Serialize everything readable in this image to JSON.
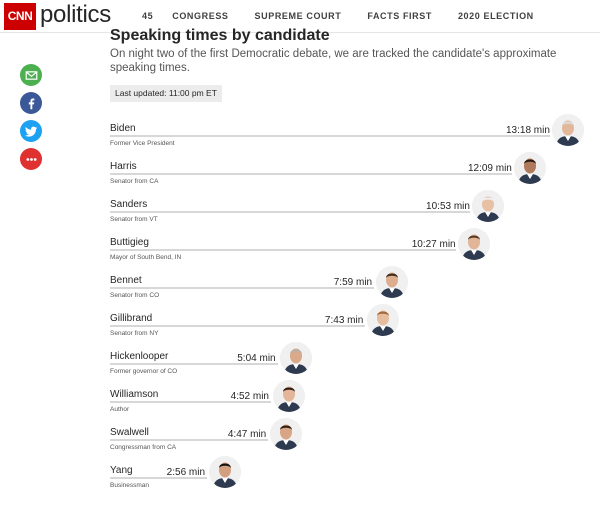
{
  "header": {
    "logo_text": "CNN",
    "section": "politics",
    "nav": [
      "45",
      "CONGRESS",
      "SUPREME COURT",
      "FACTS FIRST",
      "2020 ELECTION"
    ]
  },
  "share_icons": [
    "email-icon",
    "facebook-icon",
    "twitter-icon",
    "more-icon"
  ],
  "colors": {
    "brand": "#cc0000",
    "email": "#4caf50",
    "facebook": "#3b5998",
    "twitter": "#1da1f2",
    "more": "#e03131",
    "bar": "#d7d7d7"
  },
  "chart_data": {
    "type": "bar",
    "title": "Speaking times by candidate",
    "subtitle": "On night two of the first Democratic debate, we are tracked the candidate's approximate speaking times.",
    "last_updated": "Last updated: 11:00 pm ET",
    "unit": "min",
    "candidates": [
      {
        "name": "Biden",
        "role": "Former Vice President",
        "time_label": "13:18 min",
        "seconds": 798
      },
      {
        "name": "Harris",
        "role": "Senator from CA",
        "time_label": "12:09 min",
        "seconds": 729
      },
      {
        "name": "Sanders",
        "role": "Senator from VT",
        "time_label": "10:53 min",
        "seconds": 653
      },
      {
        "name": "Buttigieg",
        "role": "Mayor of South Bend, IN",
        "time_label": "10:27 min",
        "seconds": 627
      },
      {
        "name": "Bennet",
        "role": "Senator from CO",
        "time_label": "7:59 min",
        "seconds": 479
      },
      {
        "name": "Gillibrand",
        "role": "Senator from NY",
        "time_label": "7:43 min",
        "seconds": 463
      },
      {
        "name": "Hickenlooper",
        "role": "Former governor of CO",
        "time_label": "5:04 min",
        "seconds": 304
      },
      {
        "name": "Williamson",
        "role": "Author",
        "time_label": "4:52 min",
        "seconds": 292
      },
      {
        "name": "Swalwell",
        "role": "Congressman from CA",
        "time_label": "4:47 min",
        "seconds": 287
      },
      {
        "name": "Yang",
        "role": "Businessman",
        "time_label": "2:56 min",
        "seconds": 176
      }
    ]
  }
}
